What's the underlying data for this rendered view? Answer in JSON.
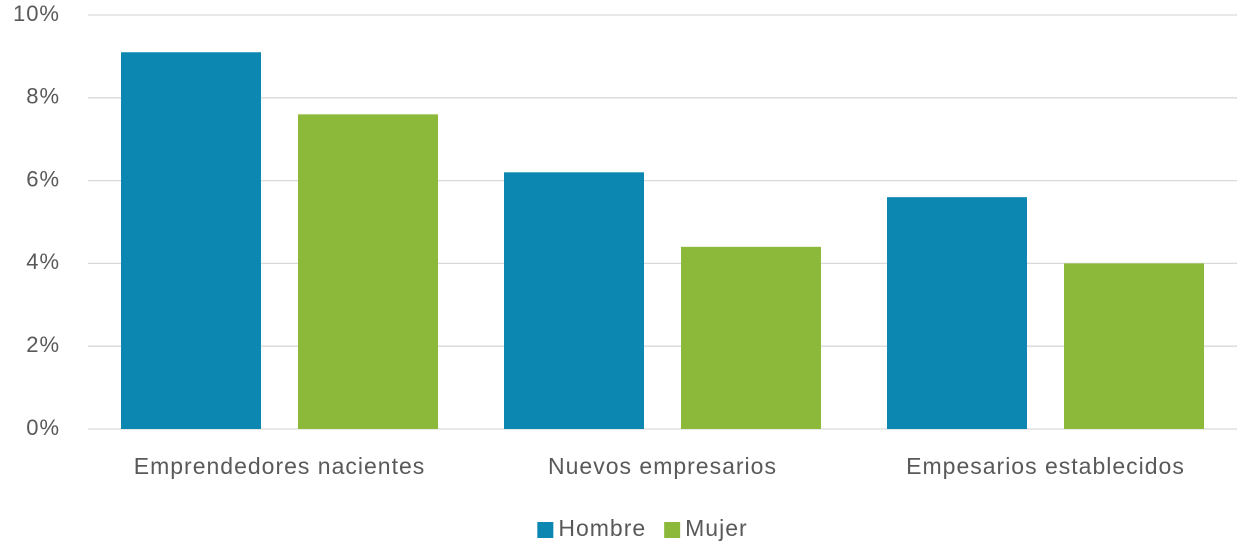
{
  "chart_data": {
    "type": "bar",
    "categories": [
      "Emprendedores nacientes",
      "Nuevos empresarios",
      "Empesarios establecidos"
    ],
    "series": [
      {
        "name": "Hombre",
        "color": "#0b87b2",
        "values": [
          9.1,
          6.2,
          5.6
        ]
      },
      {
        "name": "Mujer",
        "color": "#8cb93a",
        "values": [
          7.6,
          4.4,
          4.0
        ]
      }
    ],
    "ylim": [
      0,
      10
    ],
    "yticks": [
      {
        "value": 0,
        "label": "0%"
      },
      {
        "value": 2,
        "label": "2%"
      },
      {
        "value": 4,
        "label": "4%"
      },
      {
        "value": 6,
        "label": "6%"
      },
      {
        "value": 8,
        "label": "8%"
      },
      {
        "value": 10,
        "label": "10%"
      }
    ],
    "grid": true,
    "legend": "bottom"
  }
}
